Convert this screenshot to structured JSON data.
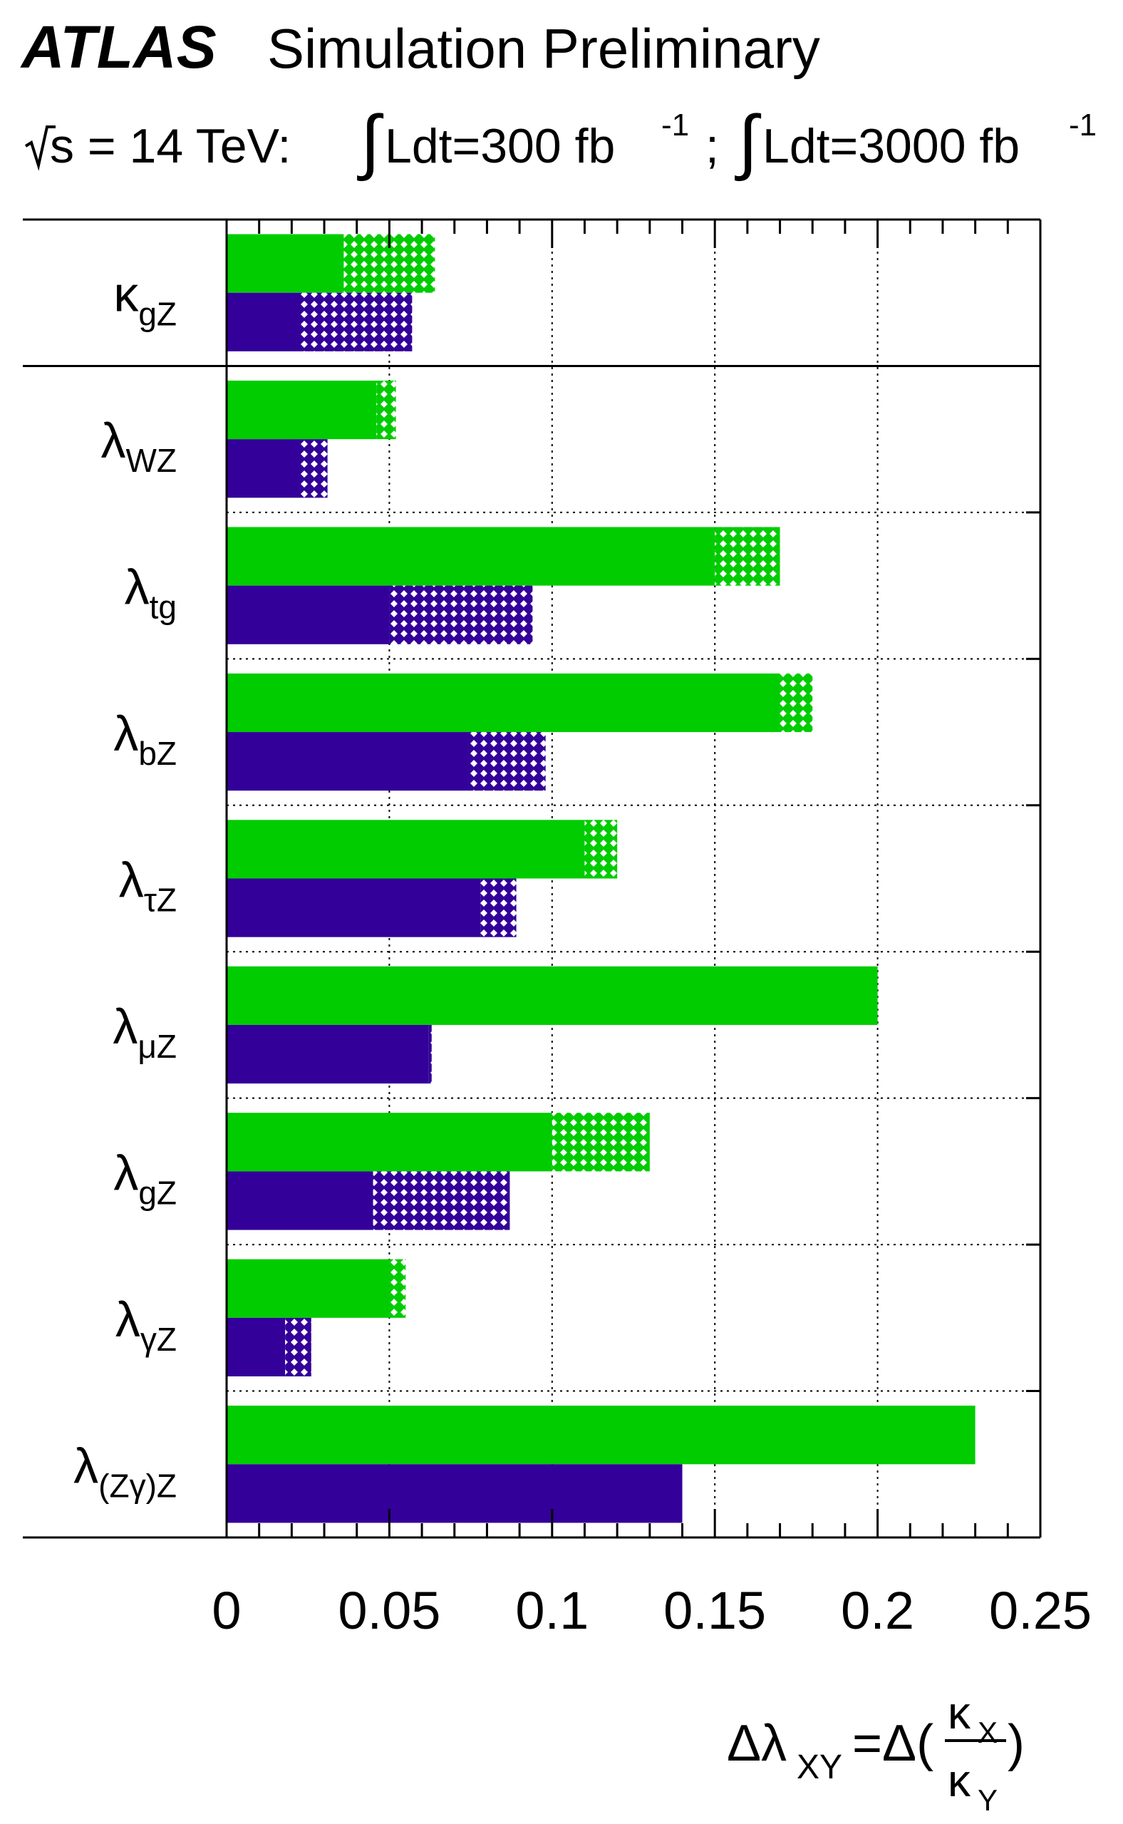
{
  "header": {
    "brand": "ATLAS",
    "title": "Simulation Preliminary",
    "energy_prefix": "s = 14 TeV:",
    "lumi_300_text": "Ldt=300 fb",
    "lumi_300_exp": "-1",
    "separator": ";",
    "lumi_3000_text": "Ldt=3000 fb",
    "lumi_3000_exp": "-1"
  },
  "colors": {
    "lumi_300": "#00cc00",
    "lumi_3000": "#330099",
    "hatch_fill": "#ffffff",
    "frame": "#000000",
    "grid": "#000000"
  },
  "chart_data": {
    "type": "bar",
    "orientation": "horizontal",
    "xlabel": "Δλ_XY = Δ(κ_X / κ_Y)",
    "xlim": [
      0,
      0.25
    ],
    "x_ticks": [
      "0",
      "0.05",
      "0.1",
      "0.15",
      "0.2",
      "0.25"
    ],
    "grid": true,
    "categories": [
      {
        "symbol": "κ",
        "subscript": "gZ"
      },
      {
        "symbol": "λ",
        "subscript": "WZ"
      },
      {
        "symbol": "λ",
        "subscript": "tg"
      },
      {
        "symbol": "λ",
        "subscript": "bZ"
      },
      {
        "symbol": "λ",
        "subscript": "τZ"
      },
      {
        "symbol": "λ",
        "subscript": "μZ"
      },
      {
        "symbol": "λ",
        "subscript": "gZ"
      },
      {
        "symbol": "λ",
        "subscript": "γZ"
      },
      {
        "symbol": "λ",
        "subscript": "(Zγ)Z"
      }
    ],
    "series": [
      {
        "name": "∫Ldt=300 fb⁻¹",
        "color_key": "lumi_300",
        "values": [
          {
            "solid": 0.036,
            "total": 0.064
          },
          {
            "solid": 0.046,
            "total": 0.052
          },
          {
            "solid": 0.15,
            "total": 0.17
          },
          {
            "solid": 0.17,
            "total": 0.18
          },
          {
            "solid": 0.11,
            "total": 0.12
          },
          {
            "solid": 0.2,
            "total": 0.2
          },
          {
            "solid": 0.1,
            "total": 0.13
          },
          {
            "solid": 0.05,
            "total": 0.055
          },
          {
            "solid": 0.23,
            "total": 0.23
          }
        ]
      },
      {
        "name": "∫Ldt=3000 fb⁻¹",
        "color_key": "lumi_3000",
        "values": [
          {
            "solid": 0.022,
            "total": 0.057
          },
          {
            "solid": 0.022,
            "total": 0.031
          },
          {
            "solid": 0.05,
            "total": 0.094
          },
          {
            "solid": 0.074,
            "total": 0.098
          },
          {
            "solid": 0.078,
            "total": 0.089
          },
          {
            "solid": 0.062,
            "total": 0.063
          },
          {
            "solid": 0.045,
            "total": 0.087
          },
          {
            "solid": 0.018,
            "total": 0.026
          },
          {
            "solid": 0.14,
            "total": 0.14
          }
        ]
      }
    ]
  }
}
